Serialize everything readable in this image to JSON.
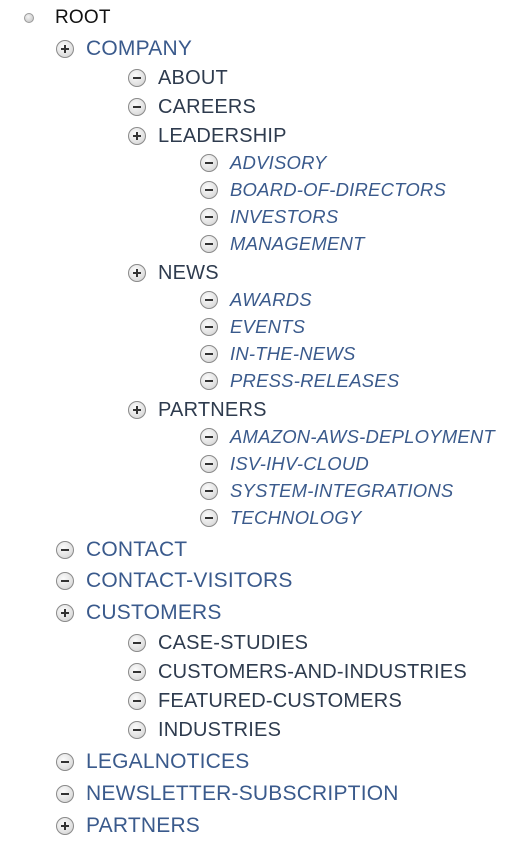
{
  "tree": {
    "root_label": "ROOT",
    "nodes": [
      {
        "label": "COMPANY",
        "level": 1,
        "state": "plus"
      },
      {
        "label": "ABOUT",
        "level": 2,
        "state": "minus"
      },
      {
        "label": "CAREERS",
        "level": 2,
        "state": "minus"
      },
      {
        "label": "LEADERSHIP",
        "level": 2,
        "state": "plus"
      },
      {
        "label": "ADVISORY",
        "level": 3,
        "state": "minus"
      },
      {
        "label": "BOARD-OF-DIRECTORS",
        "level": 3,
        "state": "minus"
      },
      {
        "label": "INVESTORS",
        "level": 3,
        "state": "minus"
      },
      {
        "label": "MANAGEMENT",
        "level": 3,
        "state": "minus"
      },
      {
        "label": "NEWS",
        "level": 2,
        "state": "plus"
      },
      {
        "label": "AWARDS",
        "level": 3,
        "state": "minus"
      },
      {
        "label": "EVENTS",
        "level": 3,
        "state": "minus"
      },
      {
        "label": "IN-THE-NEWS",
        "level": 3,
        "state": "minus"
      },
      {
        "label": "PRESS-RELEASES",
        "level": 3,
        "state": "minus"
      },
      {
        "label": "PARTNERS",
        "level": 2,
        "state": "plus"
      },
      {
        "label": "AMAZON-AWS-DEPLOYMENT",
        "level": 3,
        "state": "minus"
      },
      {
        "label": "ISV-IHV-CLOUD",
        "level": 3,
        "state": "minus"
      },
      {
        "label": "SYSTEM-INTEGRATIONS",
        "level": 3,
        "state": "minus"
      },
      {
        "label": "TECHNOLOGY",
        "level": 3,
        "state": "minus"
      },
      {
        "label": "CONTACT",
        "level": 1,
        "state": "minus"
      },
      {
        "label": "CONTACT-VISITORS",
        "level": 1,
        "state": "minus"
      },
      {
        "label": "CUSTOMERS",
        "level": 1,
        "state": "plus"
      },
      {
        "label": "CASE-STUDIES",
        "level": 2,
        "state": "minus"
      },
      {
        "label": "CUSTOMERS-AND-INDUSTRIES",
        "level": 2,
        "state": "minus"
      },
      {
        "label": "FEATURED-CUSTOMERS",
        "level": 2,
        "state": "minus"
      },
      {
        "label": "INDUSTRIES",
        "level": 2,
        "state": "minus"
      },
      {
        "label": "LEGALNOTICES",
        "level": 1,
        "state": "minus"
      },
      {
        "label": "NEWSLETTER-SUBSCRIPTION",
        "level": 1,
        "state": "minus"
      },
      {
        "label": "PARTNERS",
        "level": 1,
        "state": "plus"
      }
    ]
  }
}
